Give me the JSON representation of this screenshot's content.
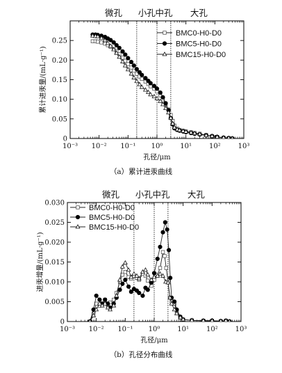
{
  "figure": {
    "caption_a": "（a）累计进汞曲线",
    "caption_b": "（b）孔径分布曲线"
  },
  "chart_data": [
    {
      "id": "a",
      "type": "scatter",
      "xscale": "log",
      "xlabel": "孔径/μm",
      "ylabel": "累计进汞量/(mL·g⁻¹)",
      "xlim": [
        0.001,
        1000
      ],
      "ylim": [
        0,
        0.3
      ],
      "xticks": [
        0.001,
        0.01,
        0.1,
        1,
        10,
        100,
        1000
      ],
      "xtick_labels": [
        "10⁻³",
        "10⁻²",
        "10⁻¹",
        "10⁰",
        "10¹",
        "10²",
        "10³"
      ],
      "yticks": [
        0,
        0.05,
        0.1,
        0.15,
        0.2,
        0.25
      ],
      "ytick_labels": [
        "0",
        "0.05",
        "0.10",
        "0.15",
        "0.20",
        "0.25"
      ],
      "regions": [
        "微孔",
        "小孔",
        "中孔",
        "大孔"
      ],
      "boundaries": [
        0.2,
        1,
        3
      ],
      "legend_position": "top-right",
      "series": [
        {
          "name": "BMC0-H0-D0",
          "marker": "open-square",
          "points": [
            [
              0.006,
              0.248
            ],
            [
              0.0075,
              0.248
            ],
            [
              0.009,
              0.247
            ],
            [
              0.012,
              0.245
            ],
            [
              0.016,
              0.242
            ],
            [
              0.02,
              0.238
            ],
            [
              0.025,
              0.234
            ],
            [
              0.032,
              0.228
            ],
            [
              0.04,
              0.222
            ],
            [
              0.05,
              0.215
            ],
            [
              0.065,
              0.206
            ],
            [
              0.08,
              0.198
            ],
            [
              0.1,
              0.19
            ],
            [
              0.13,
              0.181
            ],
            [
              0.16,
              0.173
            ],
            [
              0.2,
              0.165
            ],
            [
              0.25,
              0.158
            ],
            [
              0.3,
              0.152
            ],
            [
              0.4,
              0.145
            ],
            [
              0.5,
              0.139
            ],
            [
              0.6,
              0.133
            ],
            [
              0.8,
              0.127
            ],
            [
              1.0,
              0.12
            ],
            [
              1.3,
              0.11
            ],
            [
              1.6,
              0.1
            ],
            [
              2.0,
              0.088
            ],
            [
              2.5,
              0.074
            ],
            [
              3.0,
              0.06
            ],
            [
              3.5,
              0.045
            ],
            [
              4.0,
              0.033
            ],
            [
              5.0,
              0.025
            ],
            [
              6.0,
              0.022
            ],
            [
              8.0,
              0.02
            ],
            [
              10,
              0.018
            ],
            [
              15,
              0.016
            ],
            [
              20,
              0.014
            ],
            [
              30,
              0.012
            ],
            [
              50,
              0.009
            ],
            [
              80,
              0.006
            ],
            [
              120,
              0.004
            ],
            [
              200,
              0.002
            ],
            [
              300,
              0.001
            ],
            [
              400,
              0.0
            ]
          ]
        },
        {
          "name": "BMC5-H0-D0",
          "marker": "filled-circle",
          "points": [
            [
              0.006,
              0.265
            ],
            [
              0.0075,
              0.265
            ],
            [
              0.009,
              0.264
            ],
            [
              0.012,
              0.262
            ],
            [
              0.016,
              0.259
            ],
            [
              0.02,
              0.255
            ],
            [
              0.025,
              0.251
            ],
            [
              0.032,
              0.245
            ],
            [
              0.04,
              0.238
            ],
            [
              0.05,
              0.231
            ],
            [
              0.065,
              0.222
            ],
            [
              0.08,
              0.214
            ],
            [
              0.1,
              0.205
            ],
            [
              0.13,
              0.195
            ],
            [
              0.16,
              0.186
            ],
            [
              0.2,
              0.177
            ],
            [
              0.25,
              0.169
            ],
            [
              0.3,
              0.162
            ],
            [
              0.4,
              0.154
            ],
            [
              0.5,
              0.147
            ],
            [
              0.6,
              0.141
            ],
            [
              0.8,
              0.134
            ],
            [
              1.0,
              0.127
            ],
            [
              1.3,
              0.117
            ],
            [
              1.6,
              0.105
            ],
            [
              2.0,
              0.09
            ],
            [
              2.5,
              0.072
            ],
            [
              3.0,
              0.052
            ],
            [
              3.5,
              0.036
            ],
            [
              4.0,
              0.026
            ],
            [
              5.0,
              0.022
            ],
            [
              6.0,
              0.02
            ],
            [
              8.0,
              0.018
            ],
            [
              10,
              0.016
            ],
            [
              15,
              0.014
            ],
            [
              20,
              0.012
            ],
            [
              30,
              0.01
            ],
            [
              50,
              0.008
            ],
            [
              80,
              0.006
            ],
            [
              120,
              0.004
            ],
            [
              200,
              0.002
            ],
            [
              300,
              0.001
            ],
            [
              400,
              0.0
            ]
          ]
        },
        {
          "name": "BMC15-H0-D0",
          "marker": "open-triangle",
          "points": [
            [
              0.006,
              0.262
            ],
            [
              0.0075,
              0.261
            ],
            [
              0.009,
              0.26
            ],
            [
              0.012,
              0.256
            ],
            [
              0.016,
              0.25
            ],
            [
              0.02,
              0.243
            ],
            [
              0.025,
              0.236
            ],
            [
              0.032,
              0.227
            ],
            [
              0.04,
              0.218
            ],
            [
              0.05,
              0.208
            ],
            [
              0.065,
              0.196
            ],
            [
              0.08,
              0.186
            ],
            [
              0.1,
              0.176
            ],
            [
              0.13,
              0.165
            ],
            [
              0.16,
              0.155
            ],
            [
              0.2,
              0.146
            ],
            [
              0.25,
              0.138
            ],
            [
              0.3,
              0.131
            ],
            [
              0.4,
              0.124
            ],
            [
              0.5,
              0.118
            ],
            [
              0.6,
              0.112
            ],
            [
              0.8,
              0.107
            ],
            [
              1.0,
              0.102
            ],
            [
              1.3,
              0.095
            ],
            [
              1.6,
              0.087
            ],
            [
              2.0,
              0.077
            ],
            [
              2.5,
              0.066
            ],
            [
              3.0,
              0.052
            ],
            [
              3.5,
              0.038
            ],
            [
              4.0,
              0.028
            ],
            [
              5.0,
              0.023
            ],
            [
              6.0,
              0.021
            ],
            [
              8.0,
              0.019
            ],
            [
              10,
              0.017
            ],
            [
              15,
              0.015
            ],
            [
              20,
              0.013
            ],
            [
              30,
              0.011
            ],
            [
              50,
              0.008
            ],
            [
              80,
              0.006
            ],
            [
              120,
              0.004
            ],
            [
              200,
              0.002
            ],
            [
              300,
              0.001
            ],
            [
              400,
              0.0
            ]
          ]
        }
      ]
    },
    {
      "id": "b",
      "type": "line",
      "xscale": "log",
      "xlabel": "孔径/μm",
      "ylabel": "进汞增量/(mL·g⁻¹)",
      "xlim": [
        0.001,
        1000
      ],
      "ylim": [
        0,
        0.03
      ],
      "xticks": [
        0.001,
        0.01,
        0.1,
        1,
        10,
        100,
        1000
      ],
      "xtick_labels": [
        "10⁻³",
        "10⁻²",
        "10⁻¹",
        "10⁰",
        "10¹",
        "10²",
        "10³"
      ],
      "yticks": [
        0,
        0.005,
        0.01,
        0.015,
        0.02,
        0.025,
        0.03
      ],
      "ytick_labels": [
        "0",
        "0.005",
        "0.010",
        "0.015",
        "0.020",
        "0.025",
        "0.030"
      ],
      "regions": [
        "微孔",
        "小孔",
        "中孔",
        "大孔"
      ],
      "boundaries": [
        0.2,
        1,
        3
      ],
      "legend_position": "top-left",
      "series": [
        {
          "name": "BMC0-H0-D0",
          "marker": "open-square",
          "points": [
            [
              0.006,
              0.0
            ],
            [
              0.008,
              0.002
            ],
            [
              0.01,
              0.0045
            ],
            [
              0.013,
              0.004
            ],
            [
              0.016,
              0.0045
            ],
            [
              0.02,
              0.0055
            ],
            [
              0.025,
              0.004
            ],
            [
              0.03,
              0.0048
            ],
            [
              0.04,
              0.0055
            ],
            [
              0.05,
              0.0072
            ],
            [
              0.065,
              0.01
            ],
            [
              0.08,
              0.0118
            ],
            [
              0.1,
              0.0125
            ],
            [
              0.13,
              0.0112
            ],
            [
              0.16,
              0.0108
            ],
            [
              0.2,
              0.0115
            ],
            [
              0.25,
              0.011
            ],
            [
              0.3,
              0.0105
            ],
            [
              0.4,
              0.012
            ],
            [
              0.5,
              0.0115
            ],
            [
              0.6,
              0.0103
            ],
            [
              0.8,
              0.009
            ],
            [
              1.0,
              0.0105
            ],
            [
              1.3,
              0.0118
            ],
            [
              1.6,
              0.0135
            ],
            [
              2.0,
              0.0175
            ],
            [
              2.3,
              0.0165
            ],
            [
              2.6,
              0.0135
            ],
            [
              3.0,
              0.01
            ],
            [
              3.5,
              0.006
            ],
            [
              4.0,
              0.005
            ],
            [
              5.0,
              0.0045
            ],
            [
              6.0,
              0.0025
            ],
            [
              8.0,
              0.001
            ],
            [
              10,
              0.0005
            ],
            [
              20,
              0.0003
            ],
            [
              50,
              0.0002
            ],
            [
              100,
              0.0002
            ],
            [
              200,
              0.0001
            ],
            [
              300,
              0.0002
            ],
            [
              400,
              0.0
            ]
          ]
        },
        {
          "name": "BMC5-H0-D0",
          "marker": "filled-circle",
          "points": [
            [
              0.006,
              0.0
            ],
            [
              0.008,
              0.003
            ],
            [
              0.01,
              0.0065
            ],
            [
              0.013,
              0.0055
            ],
            [
              0.016,
              0.0045
            ],
            [
              0.02,
              0.0055
            ],
            [
              0.025,
              0.0045
            ],
            [
              0.03,
              0.0035
            ],
            [
              0.04,
              0.0045
            ],
            [
              0.05,
              0.006
            ],
            [
              0.065,
              0.008
            ],
            [
              0.08,
              0.0095
            ],
            [
              0.1,
              0.0105
            ],
            [
              0.13,
              0.0088
            ],
            [
              0.16,
              0.0075
            ],
            [
              0.2,
              0.0082
            ],
            [
              0.25,
              0.0078
            ],
            [
              0.3,
              0.0072
            ],
            [
              0.4,
              0.0065
            ],
            [
              0.5,
              0.0085
            ],
            [
              0.6,
              0.008
            ],
            [
              0.8,
              0.0098
            ],
            [
              1.0,
              0.0122
            ],
            [
              1.3,
              0.0158
            ],
            [
              1.6,
              0.0188
            ],
            [
              2.0,
              0.0225
            ],
            [
              2.4,
              0.025
            ],
            [
              2.8,
              0.0232
            ],
            [
              3.2,
              0.018
            ],
            [
              3.6,
              0.011
            ],
            [
              4.0,
              0.006
            ],
            [
              5.0,
              0.005
            ],
            [
              6.0,
              0.003
            ],
            [
              8.0,
              0.0012
            ],
            [
              10,
              0.0005
            ],
            [
              20,
              0.0003
            ],
            [
              50,
              0.0002
            ],
            [
              100,
              0.0002
            ],
            [
              200,
              0.0001
            ],
            [
              300,
              0.0002
            ],
            [
              400,
              0.0
            ]
          ]
        },
        {
          "name": "BMC15-H0-D0",
          "marker": "open-triangle",
          "points": [
            [
              0.006,
              0.0
            ],
            [
              0.008,
              0.0015
            ],
            [
              0.01,
              0.003
            ],
            [
              0.013,
              0.0045
            ],
            [
              0.016,
              0.004
            ],
            [
              0.02,
              0.0045
            ],
            [
              0.025,
              0.0035
            ],
            [
              0.03,
              0.003
            ],
            [
              0.04,
              0.004
            ],
            [
              0.05,
              0.0065
            ],
            [
              0.065,
              0.0105
            ],
            [
              0.08,
              0.0138
            ],
            [
              0.1,
              0.0148
            ],
            [
              0.13,
              0.013
            ],
            [
              0.16,
              0.0112
            ],
            [
              0.2,
              0.012
            ],
            [
              0.25,
              0.0115
            ],
            [
              0.3,
              0.0108
            ],
            [
              0.4,
              0.0125
            ],
            [
              0.5,
              0.013
            ],
            [
              0.6,
              0.0118
            ],
            [
              0.8,
              0.0105
            ],
            [
              1.0,
              0.0112
            ],
            [
              1.3,
              0.0115
            ],
            [
              1.6,
              0.012
            ],
            [
              2.0,
              0.0115
            ],
            [
              2.5,
              0.01
            ],
            [
              3.0,
              0.0098
            ],
            [
              3.5,
              0.006
            ],
            [
              4.0,
              0.0045
            ],
            [
              5.0,
              0.003
            ],
            [
              6.0,
              0.002
            ],
            [
              8.0,
              0.001
            ],
            [
              10,
              0.0005
            ],
            [
              20,
              0.0003
            ],
            [
              50,
              0.0002
            ],
            [
              100,
              0.0002
            ],
            [
              200,
              0.0001
            ],
            [
              300,
              0.0002
            ],
            [
              400,
              0.0
            ]
          ]
        }
      ]
    }
  ]
}
